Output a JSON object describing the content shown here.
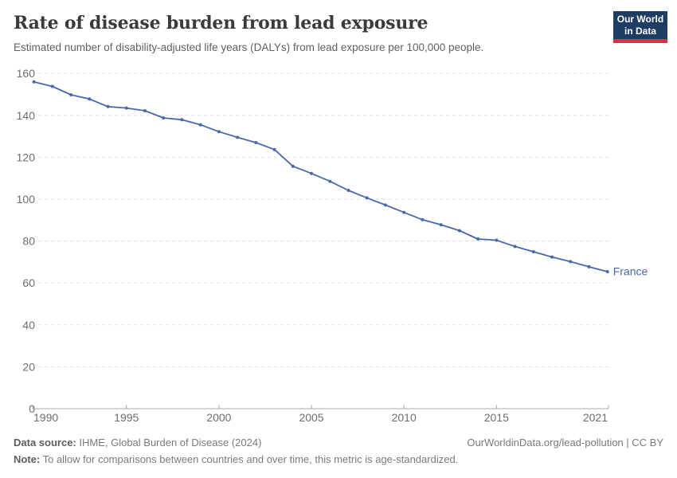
{
  "header": {
    "title": "Rate of disease burden from lead exposure",
    "subtitle": "Estimated number of disability-adjusted life years (DALYs) from lead exposure per 100,000 people.",
    "logo": {
      "line1": "Our World",
      "line2": "in Data"
    }
  },
  "chart_data": {
    "type": "line",
    "title": "Rate of disease burden from lead exposure",
    "subtitle": "Estimated number of disability-adjusted life years (DALYs) from lead exposure per 100,000 people.",
    "xlabel": "",
    "ylabel": "",
    "xlim": [
      1990,
      2021
    ],
    "ylim": [
      0,
      160
    ],
    "x_ticks": [
      1990,
      1995,
      2000,
      2005,
      2010,
      2015,
      2021
    ],
    "y_ticks": [
      0,
      20,
      40,
      60,
      80,
      100,
      120,
      140,
      160
    ],
    "grid": "horizontal-dashed",
    "legend_position": "end-of-line",
    "series": [
      {
        "name": "France",
        "color": "#4868ab",
        "x": [
          1990,
          1991,
          1992,
          1993,
          1994,
          1995,
          1996,
          1997,
          1998,
          1999,
          2000,
          2001,
          2002,
          2003,
          2004,
          2005,
          2006,
          2007,
          2008,
          2009,
          2010,
          2011,
          2012,
          2013,
          2014,
          2015,
          2016,
          2017,
          2018,
          2019,
          2020,
          2021
        ],
        "values": [
          156.0,
          153.8,
          149.8,
          147.8,
          144.2,
          143.5,
          142.2,
          138.8,
          137.9,
          135.5,
          132.2,
          129.5,
          127.0,
          123.7,
          115.7,
          112.3,
          108.5,
          104.2,
          100.6,
          97.2,
          93.7,
          90.2,
          87.8,
          85.0,
          81.0,
          80.4,
          77.4,
          74.9,
          72.4,
          70.2,
          67.7,
          65.4
        ]
      }
    ]
  },
  "footer": {
    "source_label": "Data source:",
    "source_text": " IHME, Global Burden of Disease (2024)",
    "link_text": "OurWorldinData.org/lead-pollution | CC BY",
    "note_label": "Note:",
    "note_text": " To allow for comparisons between countries and over time, this metric is age-standardized."
  },
  "colors": {
    "series_blue": "#4868ab",
    "logo_navy": "#1d3d63",
    "logo_red": "#dc2e45",
    "grid": "#dedede",
    "axis": "#a8a8a8",
    "tick_label": "#6e6e6e",
    "title": "#3a3a3a",
    "subtitle": "#616161"
  }
}
